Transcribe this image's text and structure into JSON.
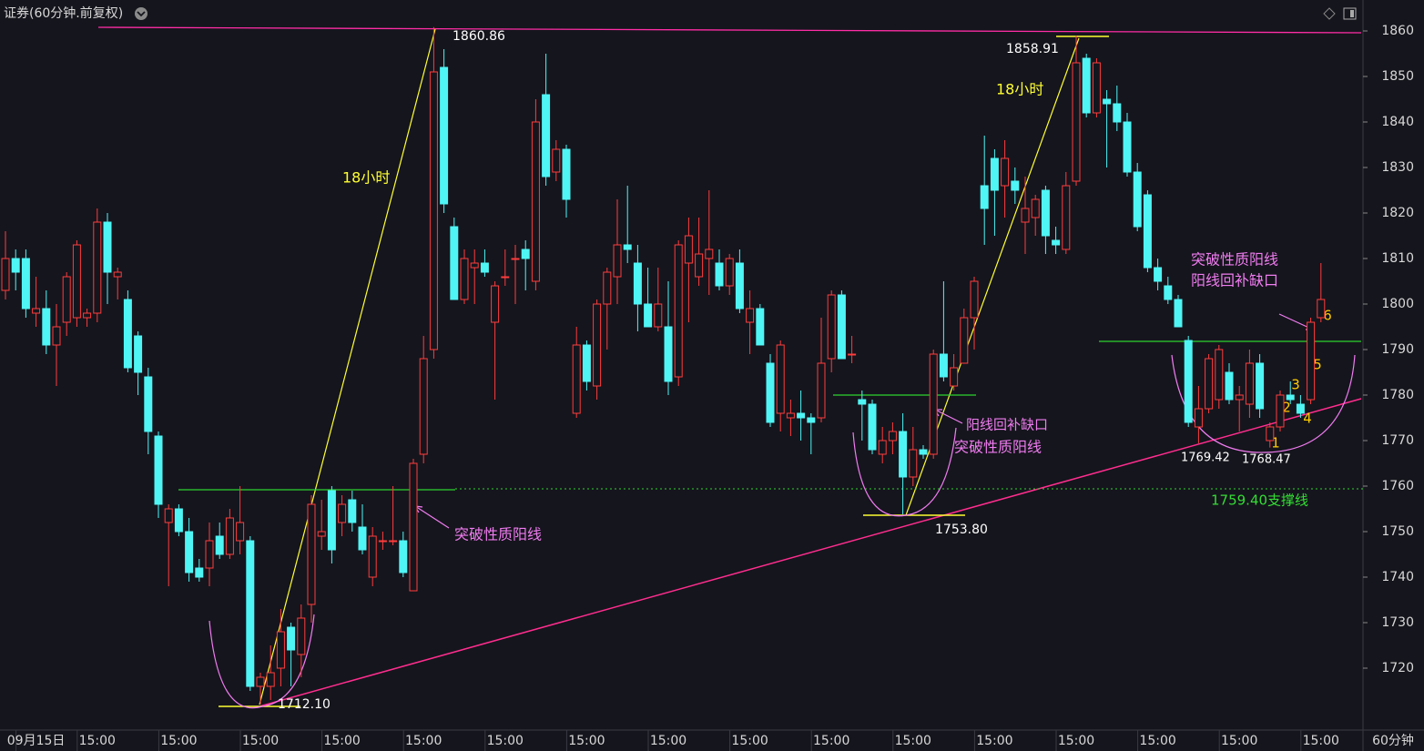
{
  "chart_data": {
    "type": "candlestick",
    "title": "证券(60分钟.前复权)",
    "period_label": "60分钟",
    "up_color": "#ff3d3d",
    "down_color": "#4ff5f5",
    "ylim": [
      1706.8,
      1866.8
    ],
    "yticks": [
      1720,
      1730,
      1740,
      1750,
      1760,
      1770,
      1780,
      1790,
      1800,
      1810,
      1820,
      1830,
      1840,
      1850,
      1860
    ],
    "categories": [
      null,
      null,
      null,
      "09月15日",
      null,
      null,
      null,
      null,
      null,
      "15:00",
      null,
      null,
      null,
      null,
      null,
      null,
      null,
      "15:00",
      null,
      null,
      null,
      null,
      null,
      null,
      null,
      "15:00",
      null,
      null,
      null,
      null,
      null,
      null,
      null,
      "15:00",
      null,
      null,
      null,
      null,
      null,
      null,
      null,
      "15:00",
      null,
      null,
      null,
      null,
      null,
      null,
      null,
      "15:00",
      null,
      null,
      null,
      null,
      null,
      null,
      null,
      "15:00",
      null,
      null,
      null,
      null,
      null,
      null,
      null,
      "15:00",
      null,
      null,
      null,
      null,
      null,
      null,
      null,
      "15:00",
      null,
      null,
      null,
      null,
      null,
      null,
      null,
      "15:00",
      null,
      null,
      null,
      null,
      null,
      null,
      null,
      "15:00",
      null,
      null,
      null,
      null,
      null,
      null,
      null,
      "15:00",
      null,
      null,
      null,
      null,
      null,
      null,
      null,
      "15:00",
      null,
      null,
      null,
      null,
      null,
      null,
      null,
      "15:00",
      null,
      null,
      null,
      null,
      null,
      null,
      null,
      "15:00",
      null,
      null,
      null,
      null,
      null,
      null,
      null,
      "15:00"
    ],
    "open": [
      1803,
      1810,
      1810,
      1798,
      1799,
      1791,
      1796,
      1797,
      1797,
      1798,
      1818,
      1806,
      1801,
      1793,
      1784,
      1771,
      1752,
      1755,
      1750,
      1742,
      1742,
      1749,
      1745,
      1748,
      1748,
      1716,
      1716,
      1720,
      1729,
      1723,
      1734,
      1749,
      1759,
      1752,
      1757,
      1751,
      1740,
      1748,
      1748,
      1748,
      1737,
      1767,
      1790,
      1852,
      1817,
      1801,
      1808,
      1809,
      1796,
      1806,
      1810,
      1812,
      1805,
      1846,
      1829,
      1834,
      1776,
      1791,
      1782,
      1800,
      1806,
      1813,
      1809,
      1800,
      1795,
      1795,
      1784,
      1809,
      1806,
      1810,
      1809,
      1804,
      1809,
      1796,
      1799,
      1787,
      1776,
      1775,
      1776,
      1775,
      1775,
      1788,
      1802,
      1789,
      1779,
      1778,
      1767,
      1770,
      1772,
      1762,
      1768,
      1767,
      1789,
      1782,
      1787,
      1797,
      1826,
      1832,
      1826,
      1827,
      1818,
      1819,
      1825,
      1814,
      1812,
      1827,
      1854,
      1842,
      1845,
      1844,
      1840,
      1829,
      1824,
      1808,
      1804,
      1801,
      1792,
      1773,
      1777,
      1779,
      1785,
      1779,
      1778,
      1787,
      1770,
      1773,
      1780,
      1778,
      1779,
      1797
    ],
    "high": [
      1816,
      1812,
      1812,
      1806,
      1803,
      1800,
      1807,
      1814,
      1799,
      1821,
      1820,
      1808,
      1803,
      1794,
      1786,
      1772,
      1756,
      1756,
      1753,
      1744,
      1752,
      1752,
      1755,
      1760,
      1749,
      1719,
      1725,
      1733,
      1730,
      1734,
      1758,
      1757,
      1760,
      1758,
      1759,
      1756,
      1751,
      1750,
      1760,
      1750,
      1766,
      1793,
      1860.86,
      1856,
      1819,
      1812,
      1812,
      1812,
      1805,
      1812,
      1813,
      1814,
      1845,
      1855,
      1836,
      1835,
      1795,
      1792,
      1801,
      1808,
      1823,
      1826,
      1813,
      1808,
      1808,
      1805,
      1814,
      1819,
      1819,
      1825,
      1812,
      1811,
      1812,
      1803,
      1800,
      1789,
      1792,
      1779,
      1781,
      1776,
      1797,
      1803,
      1803,
      1793,
      1781,
      1779,
      1773,
      1774,
      1776,
      1773,
      1769,
      1790,
      1805,
      1789,
      1799,
      1806,
      1837,
      1834,
      1836,
      1830,
      1828,
      1824,
      1826,
      1817,
      1829,
      1858.91,
      1855,
      1854,
      1847,
      1848,
      1842,
      1831,
      1825,
      1810,
      1806,
      1802,
      1793,
      1782,
      1789,
      1791,
      1787,
      1782,
      1790,
      1789,
      1774,
      1781,
      1783,
      1780,
      1797,
      1809
    ],
    "low": [
      1801,
      1803,
      1797,
      1795,
      1789,
      1782,
      1793,
      1795,
      1795,
      1796,
      1800,
      1801,
      1785,
      1780,
      1767,
      1753,
      1738,
      1749,
      1739,
      1739,
      1738,
      1744,
      1744,
      1745,
      1715,
      1712.1,
      1713,
      1716,
      1716,
      1718,
      1730,
      1746,
      1743,
      1749,
      1750,
      1745,
      1738,
      1746,
      1747,
      1740,
      1737,
      1765,
      1788,
      1820,
      1801,
      1800,
      1800,
      1806,
      1779,
      1804,
      1800,
      1803,
      1803,
      1826,
      1827,
      1819,
      1775,
      1781,
      1779,
      1790,
      1800,
      1809,
      1794,
      1795,
      1794,
      1780,
      1782,
      1796,
      1804,
      1802,
      1803,
      1802,
      1798,
      1789,
      1791,
      1773,
      1772,
      1771,
      1770,
      1767,
      1774,
      1785,
      1788,
      1787,
      1770,
      1767,
      1765,
      1767,
      1753.8,
      1760,
      1766,
      1766,
      1783,
      1781,
      1787,
      1790,
      1813,
      1815,
      1819,
      1822,
      1811,
      1815,
      1811,
      1811,
      1811,
      1826,
      1841,
      1841,
      1830,
      1838,
      1828,
      1816,
      1807,
      1803,
      1800,
      1795,
      1773,
      1769.42,
      1776,
      1777,
      1778,
      1772,
      1775,
      1775,
      1768.47,
      1772,
      1778,
      1775,
      1778,
      1796
    ],
    "close": [
      1810,
      1807,
      1799,
      1799,
      1791,
      1795,
      1806,
      1813,
      1798,
      1818,
      1807,
      1807,
      1786,
      1785,
      1772,
      1756,
      1755,
      1750,
      1741,
      1740,
      1748,
      1745,
      1753,
      1752,
      1716,
      1718,
      1719,
      1728,
      1724,
      1731,
      1756,
      1750,
      1746,
      1756,
      1752,
      1746,
      1749,
      1748,
      1748,
      1741,
      1765,
      1788,
      1851,
      1822,
      1801,
      1810,
      1809,
      1807,
      1804,
      1806,
      1810,
      1810,
      1840,
      1828,
      1834,
      1823,
      1791,
      1783,
      1800,
      1807,
      1813,
      1812,
      1800,
      1795,
      1800,
      1783,
      1813,
      1815,
      1811,
      1812,
      1804,
      1810,
      1799,
      1799,
      1791,
      1774,
      1791,
      1776,
      1775,
      1774,
      1787,
      1802,
      1788,
      1789,
      1778,
      1768,
      1770,
      1772,
      1762,
      1768,
      1767,
      1789,
      1784,
      1786,
      1797,
      1805,
      1821,
      1825,
      1832,
      1825,
      1821,
      1823,
      1815,
      1813,
      1826,
      1853,
      1842,
      1853,
      1844,
      1840,
      1829,
      1817,
      1808,
      1805,
      1801,
      1795,
      1774,
      1777,
      1788,
      1790,
      1779,
      1780,
      1787,
      1777,
      1773,
      1780,
      1779,
      1776,
      1796,
      1801
    ],
    "support": {
      "value": 1759.4,
      "label": "1759.40支撑线"
    },
    "annotations": [
      "1860.86",
      "1712.10",
      "1858.91",
      "1753.80",
      "1769.42",
      "1768.47",
      "18小时",
      "18小时",
      "突破性质阳线",
      "突破性质阳线",
      "突破性质阳线",
      "阳线回补缺口",
      "阳线回补缺口",
      "1",
      "2",
      "3",
      "4",
      "5",
      "6"
    ]
  }
}
